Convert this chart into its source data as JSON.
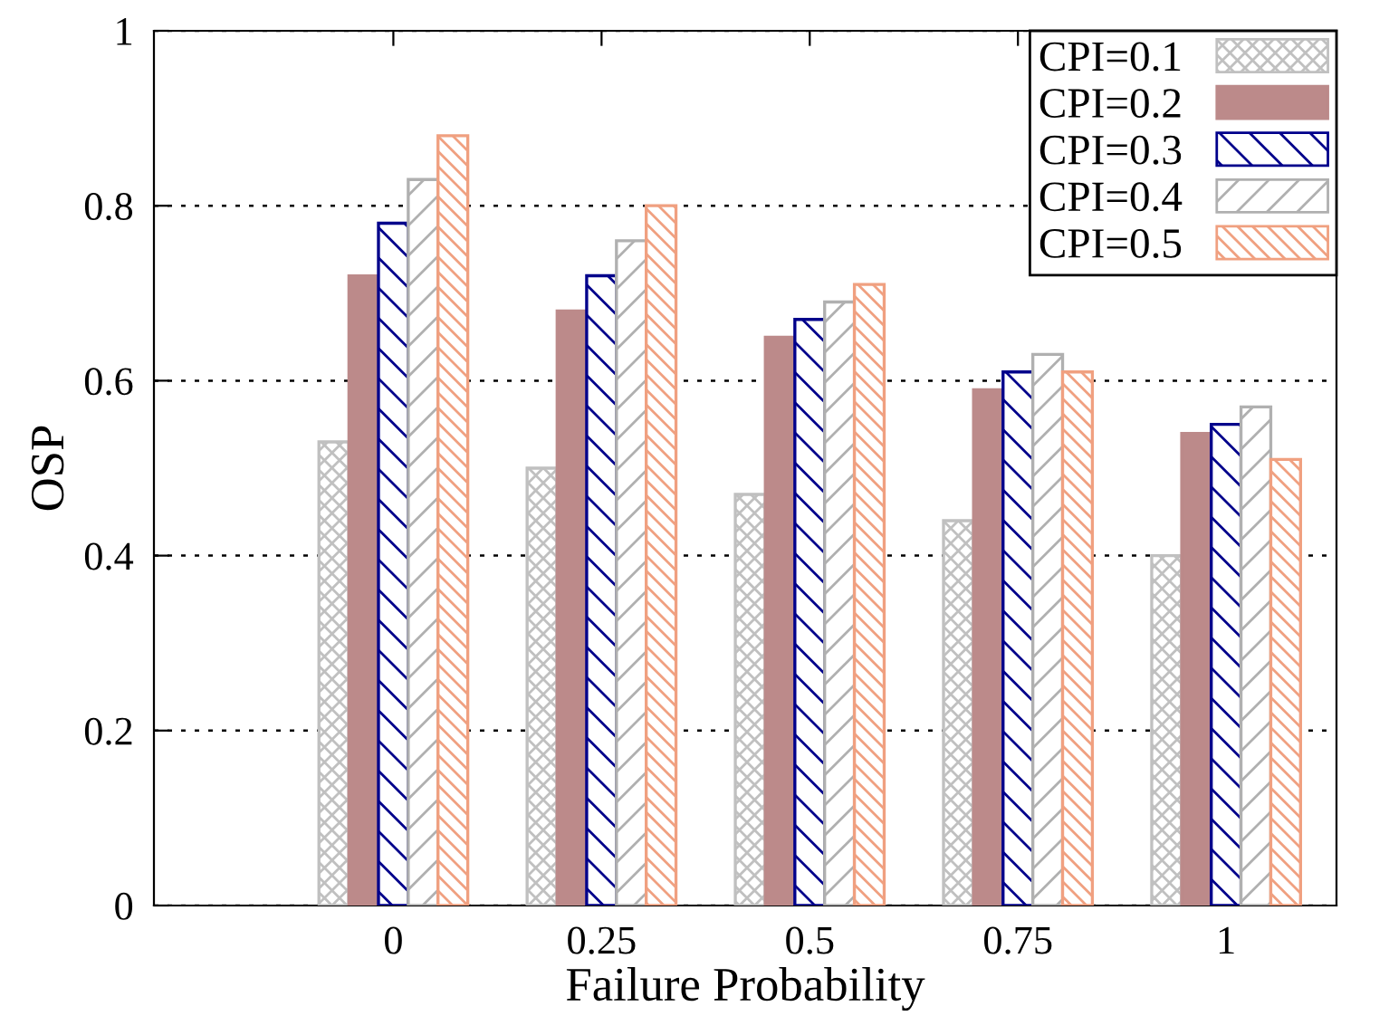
{
  "chart_data": {
    "type": "bar",
    "xlabel": "Failure Probability",
    "ylabel": "OSP",
    "categories": [
      "0",
      "0.25",
      "0.5",
      "0.75",
      "1"
    ],
    "series": [
      {
        "name": "CPI=0.1",
        "color": "#c0c0c0",
        "values": [
          0.53,
          0.5,
          0.47,
          0.44,
          0.4
        ]
      },
      {
        "name": "CPI=0.2",
        "color": "#bc8a8a",
        "values": [
          0.72,
          0.68,
          0.65,
          0.59,
          0.54
        ]
      },
      {
        "name": "CPI=0.3",
        "color": "#00008b",
        "values": [
          0.78,
          0.72,
          0.67,
          0.61,
          0.55
        ]
      },
      {
        "name": "CPI=0.4",
        "color": "#b0b0b0",
        "values": [
          0.83,
          0.76,
          0.69,
          0.63,
          0.57
        ]
      },
      {
        "name": "CPI=0.5",
        "color": "#f0a080",
        "values": [
          0.88,
          0.8,
          0.71,
          0.61,
          0.51
        ]
      }
    ],
    "ylim": [
      0,
      1
    ],
    "yticks": [
      0,
      0.2,
      0.4,
      0.6,
      0.8,
      1
    ],
    "grid": "y",
    "legend": "top right"
  }
}
